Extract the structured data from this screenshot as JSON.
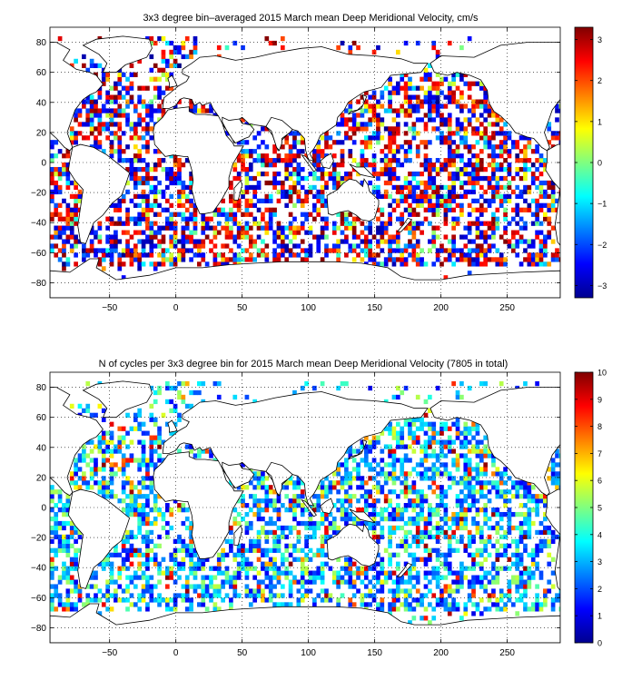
{
  "charts": [
    {
      "title": "3x3 degree bin–averaged 2015 March mean Deep Meridional Velocity, cm/s",
      "colorbar_ticks": [
        "3",
        "2",
        "1",
        "0",
        "−1",
        "−2",
        "−3"
      ],
      "colorbar_range": [
        -3.3,
        3.3
      ],
      "colormap": "jet",
      "seed": 7,
      "value_mode": "velocity"
    },
    {
      "title": "N of cycles per 3x3 degree bin for 2015 March mean Deep Meridional Velocity (7805 in total)",
      "colorbar_ticks": [
        "10",
        "9",
        "8",
        "7",
        "6",
        "5",
        "4",
        "3",
        "2",
        "1",
        "0"
      ],
      "colorbar_range": [
        0,
        10
      ],
      "colormap": "jet",
      "seed": 19,
      "value_mode": "count"
    }
  ],
  "chart_data": [
    {
      "type": "heatmap",
      "title": "3x3 degree bin–averaged 2015 March mean Deep Meridional Velocity, cm/s",
      "xlabel": "",
      "ylabel": "",
      "xlim": [
        -95,
        290
      ],
      "ylim": [
        -90,
        90
      ],
      "x_ticks": [
        -50,
        0,
        50,
        100,
        150,
        200,
        250
      ],
      "y_ticks": [
        80,
        60,
        40,
        20,
        0,
        -20,
        -40,
        -60,
        -80
      ],
      "bin_size_deg": 3,
      "colorbar_range": [
        -3.3,
        3.3
      ],
      "grid": true
    },
    {
      "type": "heatmap",
      "title": "N of cycles per 3x3 degree bin for 2015 March mean Deep Meridional Velocity (7805 in total)",
      "xlabel": "",
      "ylabel": "",
      "xlim": [
        -95,
        290
      ],
      "ylim": [
        -90,
        90
      ],
      "x_ticks": [
        -50,
        0,
        50,
        100,
        150,
        200,
        250
      ],
      "y_ticks": [
        80,
        60,
        40,
        20,
        0,
        -20,
        -40,
        -60,
        -80
      ],
      "bin_size_deg": 3,
      "colorbar_range": [
        0,
        10
      ],
      "total_cycles": 7805,
      "grid": true
    }
  ]
}
